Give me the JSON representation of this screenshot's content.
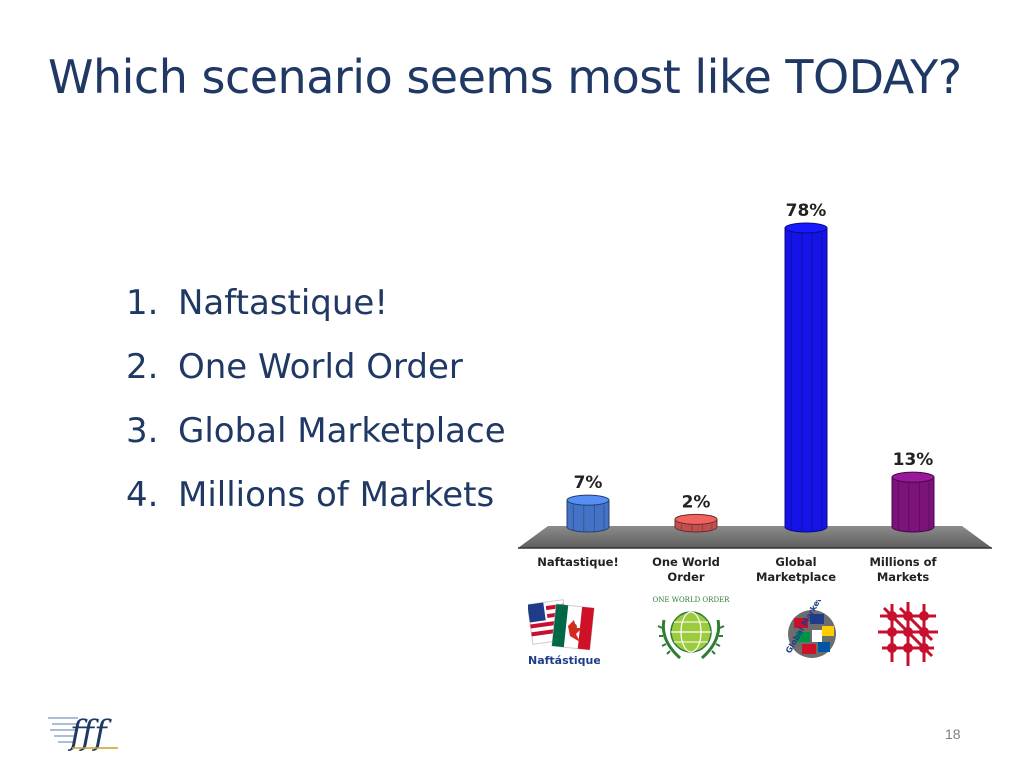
{
  "slide": {
    "title": "Which scenario seems most like TODAY?",
    "options": [
      {
        "num": "1.",
        "text": "Naftastique!"
      },
      {
        "num": "2.",
        "text": "One World Order"
      },
      {
        "num": "3.",
        "text": "Global Marketplace"
      },
      {
        "num": "4.",
        "text": "Millions of Markets"
      }
    ],
    "page_number": "18"
  },
  "chart_data": {
    "type": "bar",
    "categories": [
      [
        "Naftastique!"
      ],
      [
        "One World",
        "Order"
      ],
      [
        "Global",
        "Marketplace"
      ],
      [
        "Millions of",
        "Markets"
      ]
    ],
    "values": [
      7,
      2,
      78,
      13
    ],
    "value_labels": [
      "7%",
      "2%",
      "78%",
      "13%"
    ],
    "ylim": [
      0,
      78
    ],
    "colors": [
      "#4472c4",
      "#c0504d",
      "#1414e6",
      "#7b137b"
    ]
  },
  "logos": {
    "naftastique_text": "Naftástique!",
    "one_world_text": "ONE WORLD ORDER",
    "global_marketplace_text": "Global Marketplace"
  },
  "icons": [
    "flags-logo-icon",
    "globe-wreath-icon",
    "globe-flags-icon",
    "network-icon",
    "fff-brand-icon"
  ]
}
